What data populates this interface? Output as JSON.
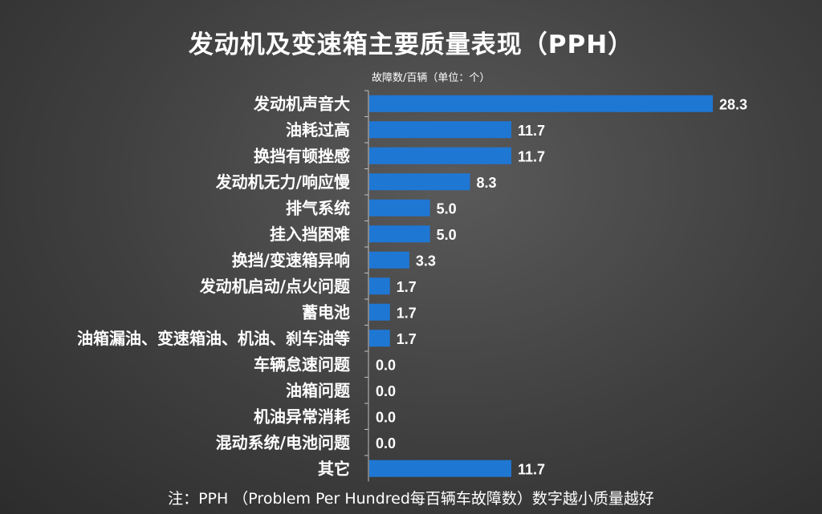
{
  "title": "发动机及变速箱主要质量表现（PPH）",
  "unit_label": "故障数/百辆（单位：个）",
  "footnote": "注：PPH （Problem Per Hundred每百辆车故障数）数字越小质量越好",
  "colors": {
    "bar": "#1f77d4",
    "axis": "#bfbfbf",
    "text": "#ffffff"
  },
  "chart_data": {
    "type": "bar",
    "orientation": "horizontal",
    "title": "发动机及变速箱主要质量表现（PPH）",
    "xlabel": "故障数/百辆（单位：个）",
    "ylabel": "",
    "xlim": [
      0,
      28.3
    ],
    "grid": false,
    "legend": "none",
    "categories": [
      "发动机声音大",
      "油耗过高",
      "换挡有顿挫感",
      "发动机无力/响应慢",
      "排气系统",
      "挂入挡困难",
      "换挡/变速箱异响",
      "发动机启动/点火问题",
      "蓄电池",
      "油箱漏油、变速箱油、机油、刹车油等",
      "车辆怠速问题",
      "油箱问题",
      "机油异常消耗",
      "混动系统/电池问题",
      "其它"
    ],
    "values": [
      28.3,
      11.7,
      11.7,
      8.3,
      5.0,
      5.0,
      3.3,
      1.7,
      1.7,
      1.7,
      0.0,
      0.0,
      0.0,
      0.0,
      11.7
    ],
    "value_labels": [
      "28.3",
      "11.7",
      "11.7",
      "8.3",
      "5.0",
      "5.0",
      "3.3",
      "1.7",
      "1.7",
      "1.7",
      "0.0",
      "0.0",
      "0.0",
      "0.0",
      "11.7"
    ]
  }
}
